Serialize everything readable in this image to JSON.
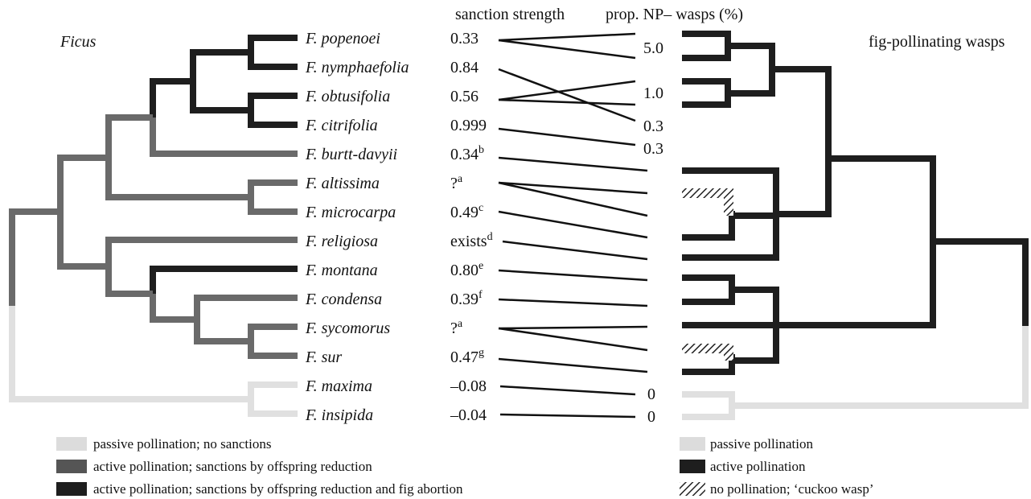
{
  "left_tree_title": "Ficus",
  "sanction_header": "sanction strength",
  "np_header": "prop. NP– wasps (%)",
  "right_tree_title": "fig-pollinating wasps",
  "species": [
    "F. popenoei",
    "F. nymphaefolia",
    "F. obtusifolia",
    "F. citrifolia",
    "F. burtt-davyii",
    "F. altissima",
    "F. microcarpa",
    "F. religiosa",
    "F. montana",
    "F. condensa",
    "F. sycomorus",
    "F. sur",
    "F. maxima",
    "F. insipida"
  ],
  "sanctions": [
    {
      "text": "0.33"
    },
    {
      "text": "0.84"
    },
    {
      "text": "0.56"
    },
    {
      "text": "0.999"
    },
    {
      "text": "0.34",
      "note": "b"
    },
    {
      "text": "?",
      "note": "a"
    },
    {
      "text": "0.49",
      "note": "c"
    },
    {
      "text": "exists",
      "note": "d"
    },
    {
      "text": "0.80",
      "note": "e"
    },
    {
      "text": "0.39",
      "note": "f"
    },
    {
      "text": "?",
      "note": "a"
    },
    {
      "text": "0.47",
      "note": "g"
    },
    {
      "text": "–0.08"
    },
    {
      "text": "–0.04"
    }
  ],
  "np_values": [
    "5.0",
    "1.0",
    "0.3",
    "0.3",
    "0",
    "0"
  ],
  "legend_left": [
    "passive pollination; no sanctions",
    "active pollination; sanctions by offspring reduction",
    "active pollination; sanctions by offspring reduction and fig abortion"
  ],
  "legend_right": [
    "passive pollination",
    "active pollination",
    "no pollination; ‘cuckoo wasp’"
  ]
}
